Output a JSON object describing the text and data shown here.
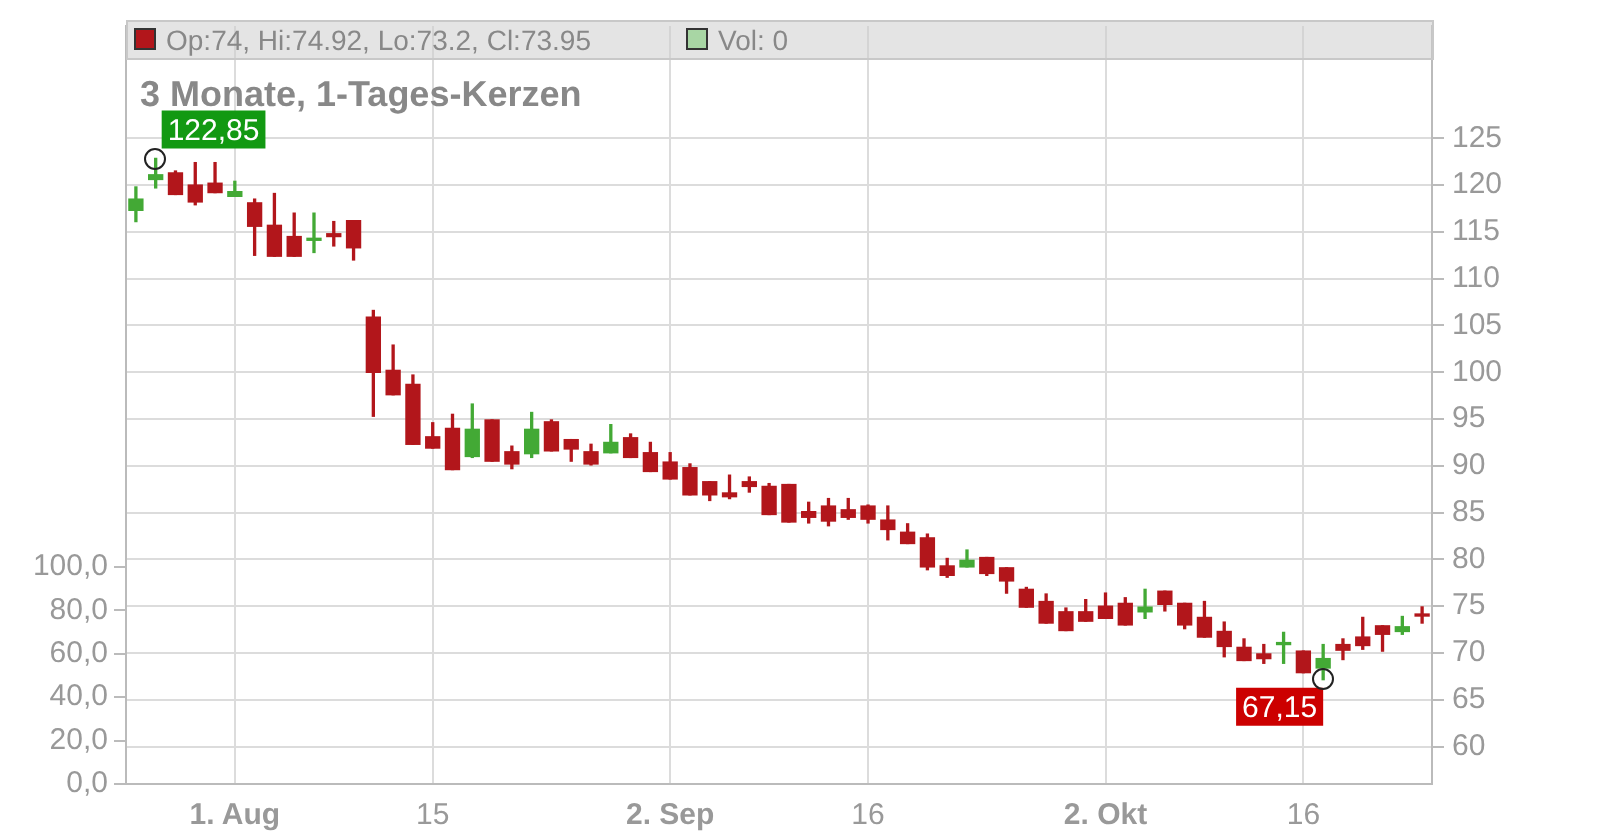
{
  "chart_data": {
    "type": "candlestick",
    "title": "3 Monate, 1-Tages-Kerzen",
    "categories": [
      null,
      null,
      null,
      null,
      null,
      "1. Aug",
      null,
      null,
      null,
      null,
      null,
      null,
      null,
      null,
      null,
      "15",
      null,
      null,
      null,
      null,
      null,
      null,
      null,
      null,
      null,
      null,
      null,
      "2. Sep",
      null,
      null,
      null,
      null,
      null,
      null,
      null,
      null,
      null,
      "16",
      null,
      null,
      null,
      null,
      null,
      null,
      null,
      null,
      null,
      null,
      null,
      "2. Okt",
      null,
      null,
      null,
      null,
      null,
      null,
      null,
      null,
      null,
      "16",
      null,
      null,
      null,
      null,
      null,
      null
    ],
    "ohlc": [
      [
        117.3,
        119.8,
        116.1,
        118.5
      ],
      [
        120.6,
        122.85,
        119.7,
        121.1
      ],
      [
        121.3,
        121.5,
        119.0,
        119.0
      ],
      [
        120.0,
        122.4,
        117.9,
        118.2
      ],
      [
        120.2,
        122.4,
        119.2,
        119.2
      ],
      [
        118.8,
        120.4,
        118.8,
        119.3
      ],
      [
        118.1,
        118.5,
        112.5,
        115.6
      ],
      [
        115.7,
        119.1,
        112.4,
        112.4
      ],
      [
        114.5,
        117.0,
        112.4,
        112.4
      ],
      [
        114.1,
        117.0,
        112.8,
        114.3
      ],
      [
        114.8,
        116.1,
        113.5,
        114.5
      ],
      [
        116.2,
        116.2,
        112.0,
        113.3
      ],
      [
        105.9,
        106.6,
        95.3,
        100.0
      ],
      [
        100.2,
        102.9,
        97.6,
        97.6
      ],
      [
        98.7,
        99.7,
        92.3,
        92.3
      ],
      [
        93.1,
        94.6,
        91.9,
        91.9
      ],
      [
        94.0,
        95.5,
        89.6,
        89.6
      ],
      [
        91.0,
        96.6,
        90.9,
        93.9
      ],
      [
        94.9,
        94.9,
        90.5,
        90.5
      ],
      [
        91.5,
        92.1,
        89.7,
        90.2
      ],
      [
        91.3,
        95.7,
        90.9,
        93.9
      ],
      [
        94.7,
        94.9,
        91.6,
        91.6
      ],
      [
        92.8,
        92.8,
        90.5,
        91.8
      ],
      [
        91.5,
        92.3,
        90.1,
        90.2
      ],
      [
        91.4,
        94.4,
        91.4,
        92.5
      ],
      [
        93.0,
        93.4,
        90.9,
        90.9
      ],
      [
        91.4,
        92.5,
        89.4,
        89.4
      ],
      [
        90.4,
        91.4,
        88.6,
        88.6
      ],
      [
        89.8,
        90.2,
        86.9,
        86.9
      ],
      [
        88.3,
        88.3,
        86.3,
        86.9
      ],
      [
        87.1,
        89.0,
        86.5,
        86.7
      ],
      [
        88.3,
        88.8,
        87.2,
        87.8
      ],
      [
        87.8,
        88.1,
        84.8,
        84.8
      ],
      [
        88.0,
        88.0,
        84.0,
        84.0
      ],
      [
        85.1,
        86.1,
        83.9,
        84.5
      ],
      [
        85.7,
        86.5,
        83.6,
        84.1
      ],
      [
        85.3,
        86.5,
        84.3,
        84.5
      ],
      [
        85.7,
        85.8,
        83.9,
        84.3
      ],
      [
        84.2,
        85.7,
        82.1,
        83.2
      ],
      [
        82.9,
        83.8,
        81.7,
        81.7
      ],
      [
        82.3,
        82.7,
        78.9,
        79.2
      ],
      [
        79.3,
        80.1,
        78.1,
        78.3
      ],
      [
        79.2,
        81.0,
        79.2,
        79.9
      ],
      [
        80.2,
        80.2,
        78.3,
        78.5
      ],
      [
        79.1,
        79.1,
        76.4,
        77.7
      ],
      [
        76.8,
        77.0,
        74.9,
        74.9
      ],
      [
        75.5,
        76.3,
        73.2,
        73.2
      ],
      [
        74.4,
        74.8,
        72.4,
        72.4
      ],
      [
        74.4,
        75.7,
        73.4,
        73.4
      ],
      [
        75.0,
        76.4,
        73.7,
        73.7
      ],
      [
        75.3,
        75.9,
        73.0,
        73.0
      ],
      [
        74.4,
        76.8,
        73.7,
        74.9
      ],
      [
        76.6,
        76.6,
        74.5,
        75.2
      ],
      [
        75.3,
        75.3,
        72.6,
        73.0
      ],
      [
        73.8,
        75.5,
        71.7,
        71.7
      ],
      [
        72.3,
        73.3,
        69.6,
        70.7
      ],
      [
        70.6,
        71.5,
        69.2,
        69.2
      ],
      [
        69.9,
        70.9,
        68.9,
        69.4
      ],
      [
        70.9,
        72.2,
        68.9,
        71.0
      ],
      [
        70.2,
        70.2,
        67.9,
        67.9
      ],
      [
        68.4,
        70.9,
        67.15,
        69.4
      ],
      [
        70.9,
        71.5,
        69.3,
        70.3
      ],
      [
        71.7,
        73.8,
        70.4,
        70.8
      ],
      [
        72.9,
        72.9,
        70.2,
        72.0
      ],
      [
        72.3,
        73.9,
        72.0,
        72.8
      ],
      [
        74,
        74.92,
        73.2,
        73.95
      ]
    ],
    "colors": [
      "#43a935",
      "#43a935",
      "#b2161b",
      "#b2161b",
      "#b2161b",
      "#43a935",
      "#b2161b",
      "#b2161b",
      "#b2161b",
      "#43a935",
      "#b2161b",
      "#b2161b",
      "#b2161b",
      "#b2161b",
      "#b2161b",
      "#b2161b",
      "#b2161b",
      "#43a935",
      "#b2161b",
      "#b2161b",
      "#43a935",
      "#b2161b",
      "#b2161b",
      "#b2161b",
      "#43a935",
      "#b2161b",
      "#b2161b",
      "#b2161b",
      "#b2161b",
      "#b2161b",
      "#b2161b",
      "#b2161b",
      "#b2161b",
      "#b2161b",
      "#b2161b",
      "#b2161b",
      "#b2161b",
      "#b2161b",
      "#b2161b",
      "#b2161b",
      "#b2161b",
      "#b2161b",
      "#43a935",
      "#b2161b",
      "#b2161b",
      "#b2161b",
      "#b2161b",
      "#b2161b",
      "#b2161b",
      "#b2161b",
      "#b2161b",
      "#43a935",
      "#b2161b",
      "#b2161b",
      "#b2161b",
      "#b2161b",
      "#b2161b",
      "#b2161b",
      "#43a935",
      "#b2161b",
      "#43a935",
      "#b2161b",
      "#b2161b",
      "#b2161b",
      "#43a935",
      "#b2161b"
    ],
    "ylim": [
      56,
      137
    ],
    "yticks": [
      60,
      65,
      70,
      75,
      80,
      85,
      90,
      95,
      100,
      105,
      110,
      115,
      120,
      125
    ],
    "y2lim": [
      0,
      349
    ],
    "y2ticks": [
      {
        "value": 0,
        "label": "0,0"
      },
      {
        "value": 20,
        "label": "20,0"
      },
      {
        "value": 40,
        "label": "40,0"
      },
      {
        "value": 60,
        "label": "60,0"
      },
      {
        "value": 80,
        "label": "80,0"
      },
      {
        "value": 100,
        "label": "100,0"
      }
    ],
    "annotations": [
      "Op:74, Hi:74.92, Lo:73.2, Cl:73.95",
      "Vol: 0",
      "122,85",
      "67,15"
    ],
    "grid": true
  }
}
